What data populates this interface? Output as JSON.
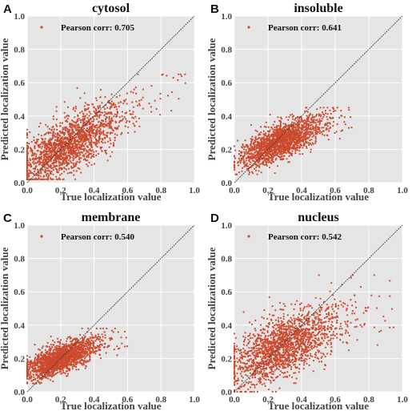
{
  "colors": {
    "panel_bg": "#e5e5e5",
    "grid": "#ffffff",
    "point": "#cc4a2e",
    "diagonal": "#333333"
  },
  "chart_data": [
    {
      "type": "scatter",
      "panel_label": "A",
      "title": "cytosol",
      "xlabel": "True localization value",
      "ylabel": "Predicted localization value",
      "xlim": [
        0,
        1
      ],
      "ylim": [
        0,
        1
      ],
      "xticks": [
        "0.0",
        "0.2",
        "0.4",
        "0.6",
        "0.8",
        "1.0"
      ],
      "yticks": [
        "0.0",
        "0.2",
        "0.4",
        "0.6",
        "0.8",
        "1.0"
      ],
      "grid": true,
      "legend_position": "top-left",
      "legend": "Pearson corr: 0.705",
      "pearson_corr": 0.705,
      "reference_line": "y = x",
      "point_cloud": {
        "x_range": [
          0.0,
          0.97
        ],
        "y_range": [
          0.02,
          0.65
        ],
        "x_center": 0.25,
        "y_center": 0.23,
        "slope": 0.52
      }
    },
    {
      "type": "scatter",
      "panel_label": "B",
      "title": "insoluble",
      "xlabel": "True localization value",
      "ylabel": "Predicted localization value",
      "xlim": [
        0,
        1
      ],
      "ylim": [
        0,
        1
      ],
      "xticks": [
        "0.0",
        "0.2",
        "0.4",
        "0.6",
        "0.8",
        "1.0"
      ],
      "yticks": [
        "0.0",
        "0.2",
        "0.4",
        "0.6",
        "0.8",
        "1.0"
      ],
      "grid": true,
      "legend_position": "top-left",
      "legend": "Pearson corr: 0.641",
      "pearson_corr": 0.641,
      "reference_line": "y = x",
      "point_cloud": {
        "x_range": [
          0.0,
          0.7
        ],
        "y_range": [
          0.05,
          0.45
        ],
        "x_center": 0.28,
        "y_center": 0.25,
        "slope": 0.42
      }
    },
    {
      "type": "scatter",
      "panel_label": "C",
      "title": "membrane",
      "xlabel": "True localization value",
      "ylabel": "Predicted localization value",
      "xlim": [
        0,
        1
      ],
      "ylim": [
        0,
        1
      ],
      "xticks": [
        "0.0",
        "0.2",
        "0.4",
        "0.6",
        "0.8",
        "1.0"
      ],
      "yticks": [
        "0.0",
        "0.2",
        "0.4",
        "0.6",
        "0.8",
        "1.0"
      ],
      "grid": true,
      "legend_position": "top-left",
      "legend": "Pearson corr: 0.540",
      "pearson_corr": 0.54,
      "reference_line": "y = x",
      "point_cloud": {
        "x_range": [
          0.0,
          0.6
        ],
        "y_range": [
          0.05,
          0.38
        ],
        "x_center": 0.2,
        "y_center": 0.2,
        "slope": 0.38
      }
    },
    {
      "type": "scatter",
      "panel_label": "D",
      "title": "nucleus",
      "xlabel": "True localization value",
      "ylabel": "Predicted localization value",
      "xlim": [
        0,
        1
      ],
      "ylim": [
        0,
        1
      ],
      "xticks": [
        "0.0",
        "0.2",
        "0.4",
        "0.6",
        "0.8",
        "1.0"
      ],
      "yticks": [
        "0.0",
        "0.2",
        "0.4",
        "0.6",
        "0.8",
        "1.0"
      ],
      "grid": true,
      "legend_position": "top-left",
      "legend": "Pearson corr: 0.542",
      "pearson_corr": 0.542,
      "reference_line": "y = x",
      "point_cloud": {
        "x_range": [
          0.0,
          0.95
        ],
        "y_range": [
          0.0,
          0.7
        ],
        "x_center": 0.3,
        "y_center": 0.28,
        "slope": 0.42
      }
    }
  ]
}
